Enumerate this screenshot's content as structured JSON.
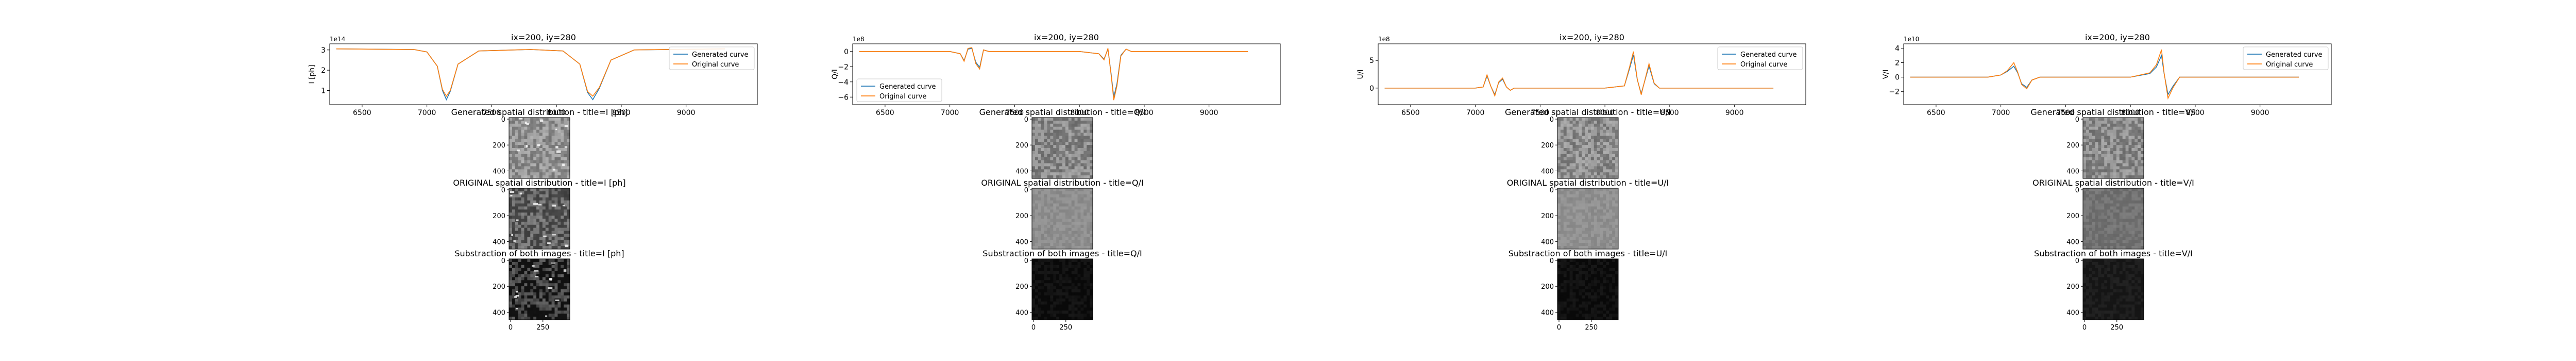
{
  "colors": {
    "generated": "#1f77b4",
    "original": "#ff7f0e",
    "axis": "#000000",
    "background": "#ffffff"
  },
  "chart_data": [
    {
      "type": "line",
      "title": "ix=200, iy=280",
      "ylabel": "I [ph]",
      "y_exponent_label": "1e14",
      "xlim": [
        6250,
        9550
      ],
      "ylim": [
        0.3,
        3.3
      ],
      "x_ticks": [
        6500,
        7000,
        7500,
        8000,
        8500,
        9000
      ],
      "x_tick_labels": [
        "6500",
        "7000",
        "7500",
        "8000",
        "8500",
        "9000"
      ],
      "y_ticks": [
        1,
        2,
        3
      ],
      "y_tick_labels": [
        "1",
        "2",
        "3"
      ],
      "legend_position": "top-right",
      "series": [
        {
          "name": "Generated curve",
          "x": [
            6300,
            6900,
            7000,
            7080,
            7120,
            7150,
            7180,
            7240,
            7400,
            7800,
            8050,
            8180,
            8240,
            8280,
            8330,
            8420,
            8600,
            9300
          ],
          "y": [
            3.05,
            3.02,
            2.9,
            2.2,
            1.0,
            0.55,
            0.95,
            2.3,
            2.95,
            3.02,
            2.95,
            2.3,
            0.9,
            0.55,
            1.1,
            2.5,
            3.0,
            3.05
          ]
        },
        {
          "name": "Original curve",
          "x": [
            6300,
            6900,
            7000,
            7080,
            7120,
            7150,
            7180,
            7240,
            7400,
            7800,
            8050,
            8180,
            8240,
            8280,
            8330,
            8420,
            8600,
            9300
          ],
          "y": [
            3.05,
            3.02,
            2.9,
            2.2,
            1.05,
            0.72,
            1.0,
            2.3,
            2.95,
            3.02,
            2.95,
            2.3,
            0.95,
            0.72,
            1.15,
            2.5,
            3.0,
            3.05
          ]
        }
      ]
    },
    {
      "type": "line",
      "title": "ix=200, iy=280",
      "ylabel": "Q/I",
      "y_exponent_label": "1e8",
      "xlim": [
        6250,
        9550
      ],
      "ylim": [
        -7,
        1
      ],
      "x_ticks": [
        6500,
        7000,
        7500,
        8000,
        8500,
        9000
      ],
      "x_tick_labels": [
        "6500",
        "7000",
        "7500",
        "8000",
        "8500",
        "9000"
      ],
      "y_ticks": [
        -6,
        -4,
        -2,
        0
      ],
      "y_tick_labels": [
        "−6",
        "−4",
        "−2",
        "0"
      ],
      "legend_position": "lower-left",
      "series": [
        {
          "name": "Generated curve",
          "x": [
            6300,
            7000,
            7080,
            7110,
            7140,
            7170,
            7200,
            7230,
            7260,
            7300,
            8000,
            8150,
            8190,
            8220,
            8245,
            8265,
            8290,
            8320,
            8360,
            8400,
            9300
          ],
          "y": [
            0,
            0,
            -0.3,
            -1.2,
            0.3,
            0.4,
            -1.4,
            -2.1,
            0.2,
            0,
            0,
            -0.3,
            -1.0,
            0.3,
            -3.0,
            -6.0,
            -4.2,
            -0.5,
            0.3,
            0,
            0
          ]
        },
        {
          "name": "Original curve",
          "x": [
            6300,
            7000,
            7080,
            7110,
            7140,
            7170,
            7200,
            7230,
            7260,
            7300,
            8000,
            8150,
            8190,
            8220,
            8245,
            8265,
            8290,
            8320,
            8360,
            8400,
            9300
          ],
          "y": [
            0,
            0,
            -0.3,
            -1.3,
            0.4,
            0.5,
            -1.6,
            -2.3,
            0.2,
            0,
            0,
            -0.3,
            -1.1,
            0.4,
            -3.2,
            -6.4,
            -4.5,
            -0.6,
            0.3,
            0,
            0
          ]
        }
      ]
    },
    {
      "type": "line",
      "title": "ix=200, iy=280",
      "ylabel": "U/I",
      "y_exponent_label": "1e8",
      "xlim": [
        6250,
        9550
      ],
      "ylim": [
        -3,
        8
      ],
      "x_ticks": [
        6500,
        7000,
        7500,
        8000,
        8500,
        9000
      ],
      "x_tick_labels": [
        "6500",
        "7000",
        "7500",
        "8000",
        "8500",
        "9000"
      ],
      "y_ticks": [
        0,
        5
      ],
      "y_tick_labels": [
        "0",
        "5"
      ],
      "legend_position": "top-right",
      "series": [
        {
          "name": "Generated curve",
          "x": [
            6300,
            7000,
            7060,
            7090,
            7120,
            7150,
            7180,
            7210,
            7240,
            7270,
            7300,
            8000,
            8150,
            8190,
            8220,
            8250,
            8280,
            8310,
            8340,
            8380,
            8420,
            9300
          ],
          "y": [
            0,
            0,
            0.2,
            2.2,
            0.3,
            -1.2,
            1.0,
            1.6,
            0.2,
            -0.4,
            0,
            0,
            0.4,
            3.5,
            6.0,
            1.5,
            -1.0,
            1.5,
            4.0,
            0.8,
            0,
            0
          ]
        },
        {
          "name": "Original curve",
          "x": [
            6300,
            7000,
            7060,
            7090,
            7120,
            7150,
            7180,
            7210,
            7240,
            7270,
            7300,
            8000,
            8150,
            8190,
            8220,
            8250,
            8280,
            8310,
            8340,
            8380,
            8420,
            9300
          ],
          "y": [
            0,
            0,
            0.2,
            2.4,
            0.3,
            -1.4,
            1.1,
            1.8,
            0.2,
            -0.4,
            0,
            0,
            0.4,
            3.8,
            6.6,
            1.6,
            -1.2,
            1.6,
            4.4,
            0.9,
            0,
            0
          ]
        }
      ]
    },
    {
      "type": "line",
      "title": "ix=200, iy=280",
      "ylabel": "V/I",
      "y_exponent_label": "1e10",
      "xlim": [
        6250,
        9550
      ],
      "ylim": [
        -3.8,
        4.6
      ],
      "x_ticks": [
        6500,
        7000,
        7500,
        8000,
        8500,
        9000
      ],
      "x_tick_labels": [
        "6500",
        "7000",
        "7500",
        "8000",
        "8500",
        "9000"
      ],
      "y_ticks": [
        -2,
        0,
        2,
        4
      ],
      "y_tick_labels": [
        "−2",
        "0",
        "2",
        "4"
      ],
      "legend_position": "top-right",
      "series": [
        {
          "name": "Generated curve",
          "x": [
            6300,
            6900,
            7000,
            7050,
            7100,
            7130,
            7160,
            7200,
            7240,
            7300,
            8000,
            8150,
            8200,
            8240,
            8260,
            8290,
            8330,
            8380,
            9300
          ],
          "y": [
            0,
            0,
            0.3,
            0.8,
            1.5,
            0.6,
            -0.9,
            -1.4,
            -0.4,
            0,
            0,
            0.5,
            1.4,
            3.0,
            0.5,
            -2.4,
            -1.2,
            0,
            0
          ]
        },
        {
          "name": "Original curve",
          "x": [
            6300,
            6900,
            7000,
            7050,
            7100,
            7130,
            7160,
            7200,
            7240,
            7300,
            8000,
            8150,
            8200,
            8240,
            8260,
            8290,
            8330,
            8380,
            9300
          ],
          "y": [
            0,
            0,
            0.3,
            0.9,
            2.0,
            0.7,
            -1.0,
            -1.6,
            -0.4,
            0,
            0,
            0.6,
            1.7,
            3.8,
            0.6,
            -2.9,
            -1.4,
            0,
            0
          ]
        }
      ]
    }
  ],
  "image_titles": [
    [
      "Generated spatial distribution - title=I [ph]",
      "ORIGINAL spatial distribution - title=I [ph]",
      "Substraction of both images - title=I [ph]"
    ],
    [
      "Generated spatial distribution - title=Q/I",
      "ORIGINAL spatial distribution - title=Q/I",
      "Substraction of both images - title=Q/I"
    ],
    [
      "Generated spatial distribution - title=U/I",
      "ORIGINAL spatial distribution - title=U/I",
      "Substraction of both images - title=U/I"
    ],
    [
      "Generated spatial distribution - title=V/I",
      "ORIGINAL spatial distribution - title=V/I",
      "Substraction of both images - title=V/I"
    ]
  ],
  "image_axes": {
    "y_tick_labels": [
      "0",
      "200",
      "400"
    ],
    "x_tick_labels": [
      "0",
      "250"
    ]
  },
  "image_tones": [
    [
      "#8a8a8a",
      "#4a4a4a",
      "#141414"
    ],
    [
      "#7d7d7d",
      "#8c8c8c",
      "#0a0a0a"
    ],
    [
      "#848484",
      "#8e8e8e",
      "#0a0a0a"
    ],
    [
      "#7f7f7f",
      "#6e6e6e",
      "#161616"
    ]
  ]
}
